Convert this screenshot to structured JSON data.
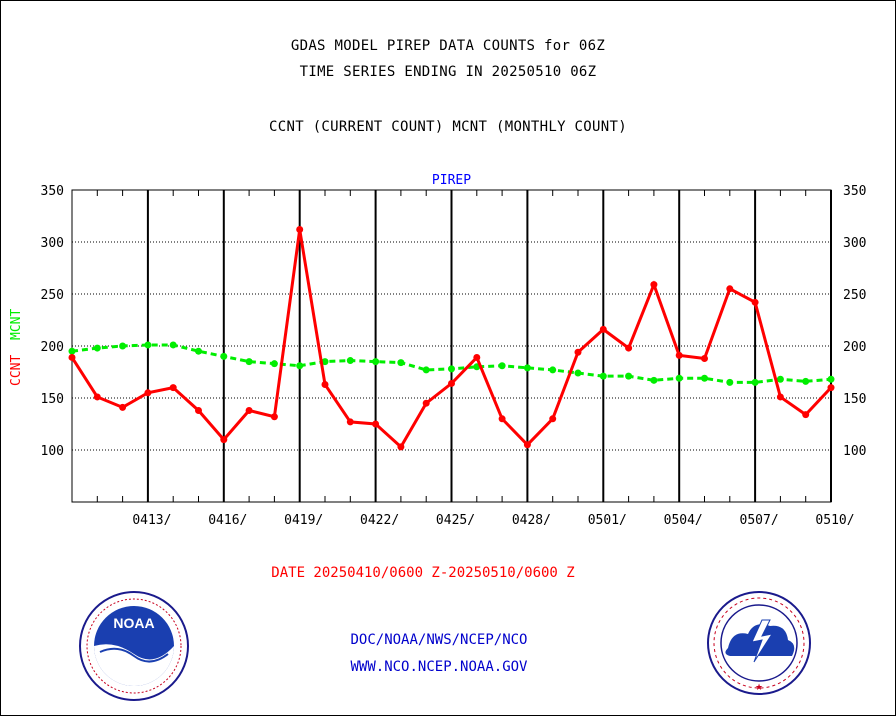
{
  "header": {
    "title_line1": "GDAS MODEL PIREP DATA COUNTS for 06Z",
    "title_line2": "TIME SERIES ENDING IN 20250510 06Z",
    "title_line3": "CCNT (CURRENT COUNT) MCNT (MONTHLY COUNT)"
  },
  "footer": {
    "date_range": "DATE 20250410/0600 Z-20250510/0600 Z",
    "org_path": "DOC/NOAA/NWS/NCEP/NCO",
    "website": "WWW.NCO.NCEP.NOAA.GOV"
  },
  "logos": {
    "left": "NOAA",
    "right": "NATIONAL WEATHER SERVICE"
  },
  "colors": {
    "ccnt": "#ff0000",
    "mcnt": "#00ee00",
    "panel_title": "#0000ff",
    "footer_blue": "#0000cc"
  },
  "chart_data": {
    "type": "line",
    "title": "PIREP",
    "ylabel_series": [
      "CCNT",
      "MCNT"
    ],
    "ylim": [
      50,
      350
    ],
    "yticks": [
      100,
      150,
      200,
      250,
      300,
      350
    ],
    "x_tick_labels": [
      "0413/",
      "0416/",
      "0419/",
      "0422/",
      "0425/",
      "0428/",
      "0501/",
      "0504/",
      "0507/",
      "0510/"
    ],
    "x_tick_days": [
      3,
      6,
      9,
      12,
      15,
      18,
      21,
      24,
      27,
      30
    ],
    "grid": true,
    "x_days": [
      0,
      1,
      2,
      3,
      4,
      5,
      6,
      7,
      8,
      9,
      10,
      11,
      12,
      13,
      14,
      15,
      16,
      17,
      18,
      19,
      20,
      21,
      22,
      23,
      24,
      25,
      26,
      27,
      28,
      29,
      30
    ],
    "series": [
      {
        "name": "CCNT",
        "color": "#ff0000",
        "values": [
          189,
          151,
          141,
          155,
          160,
          138,
          110,
          138,
          132,
          312,
          163,
          127,
          125,
          103,
          145,
          164,
          189,
          130,
          105,
          130,
          194,
          216,
          198,
          259,
          191,
          188,
          255,
          242,
          151,
          134,
          160
        ]
      },
      {
        "name": "MCNT",
        "color": "#00ee00",
        "values": [
          195,
          198,
          200,
          201,
          201,
          195,
          190,
          185,
          183,
          181,
          185,
          186,
          185,
          184,
          177,
          178,
          180,
          181,
          179,
          177,
          174,
          171,
          171,
          167,
          169,
          169,
          165,
          165,
          168,
          166,
          168
        ]
      }
    ]
  }
}
